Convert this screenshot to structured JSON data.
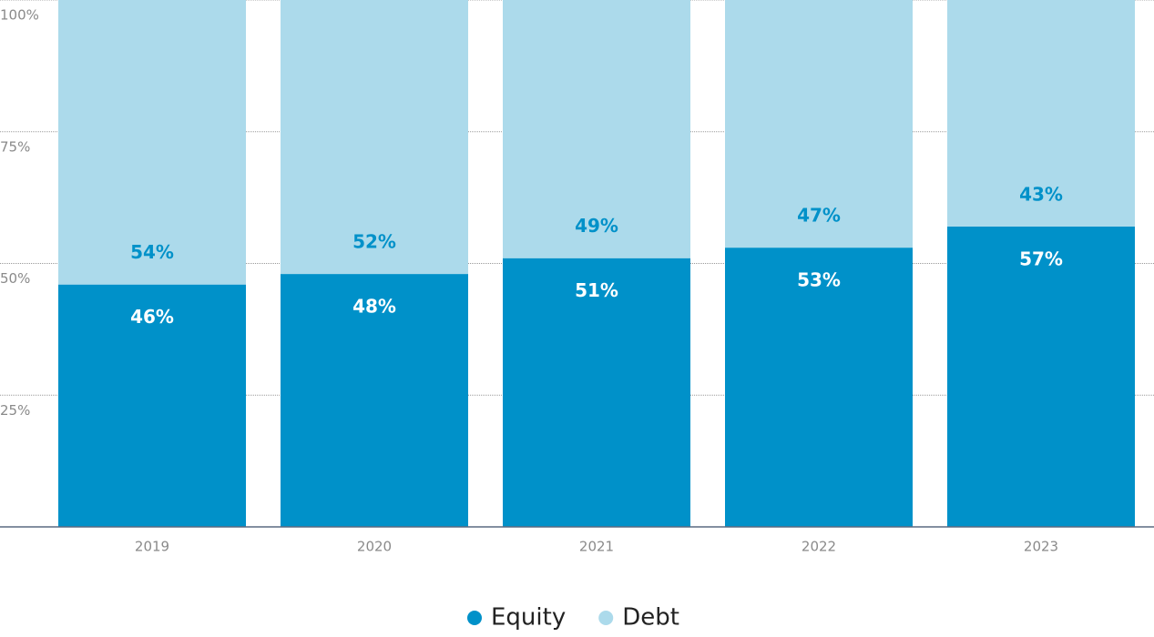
{
  "chart_data": {
    "type": "stacked_bar",
    "categories": [
      "2019",
      "2020",
      "2021",
      "2022",
      "2023"
    ],
    "series": [
      {
        "name": "Equity",
        "color": "#0091c9",
        "values": [
          46,
          48,
          51,
          53,
          57
        ],
        "value_labels": [
          "46%",
          "48%",
          "51%",
          "53%",
          "57%"
        ]
      },
      {
        "name": "Debt",
        "color": "#acdaeb",
        "values": [
          54,
          52,
          49,
          47,
          43
        ],
        "value_labels": [
          "54%",
          "52%",
          "49%",
          "47%",
          "43%"
        ]
      }
    ],
    "ylim": [
      0,
      100
    ],
    "yticks": [
      {
        "value": 25,
        "label": "25%"
      },
      {
        "value": 50,
        "label": "50%"
      },
      {
        "value": 75,
        "label": "75%"
      },
      {
        "value": 100,
        "label": "100%"
      }
    ],
    "grid": true,
    "legend": "bottom"
  }
}
